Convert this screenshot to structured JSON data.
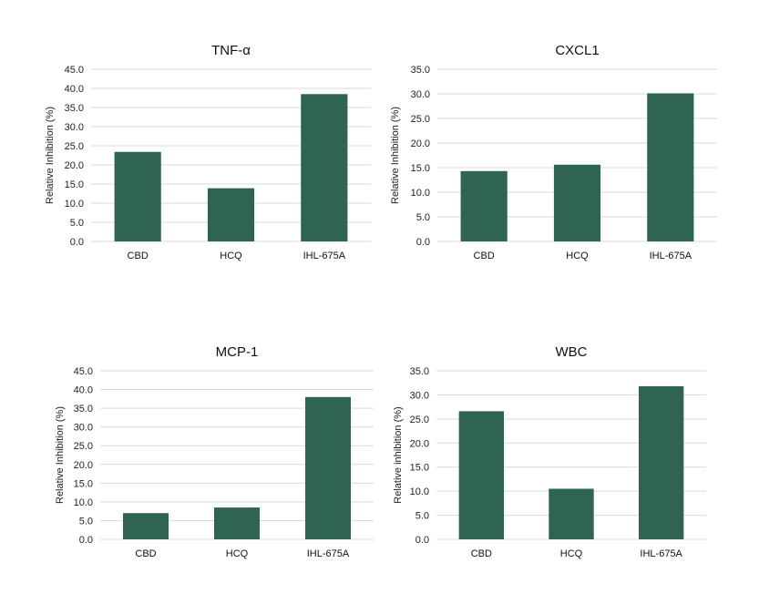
{
  "colors": {
    "bar": "#2e6450",
    "grid": "#d9d9d9"
  },
  "chart_data": [
    {
      "type": "bar",
      "title": "TNF-α",
      "ylabel": "Relative Inhibition (%)",
      "categories": [
        "CBD",
        "HCQ",
        "IHL-675A"
      ],
      "values": [
        23.4,
        13.9,
        38.5
      ],
      "ylim": [
        0,
        45
      ],
      "yticks": [
        "0.0",
        "5.0",
        "10.0",
        "15.0",
        "20.0",
        "25.0",
        "30.0",
        "35.0",
        "40.0",
        "45.0"
      ],
      "grid": true
    },
    {
      "type": "bar",
      "title": "CXCL1",
      "ylabel": "Relative Inhibition (%)",
      "categories": [
        "CBD",
        "HCQ",
        "IHL-675A"
      ],
      "values": [
        14.3,
        15.6,
        30.1
      ],
      "ylim": [
        0,
        35
      ],
      "yticks": [
        "0.0",
        "5.0",
        "10.0",
        "15.0",
        "20.0",
        "25.0",
        "30.0",
        "35.0"
      ],
      "grid": true
    },
    {
      "type": "bar",
      "title": "MCP-1",
      "ylabel": "Relative Inhibition (%)",
      "categories": [
        "CBD",
        "HCQ",
        "IHL-675A"
      ],
      "values": [
        7.0,
        8.5,
        38.0
      ],
      "ylim": [
        0,
        45
      ],
      "yticks": [
        "0.0",
        "5.0",
        "10.0",
        "15.0",
        "20.0",
        "25.0",
        "30.0",
        "35.0",
        "40.0",
        "45.0"
      ],
      "grid": true
    },
    {
      "type": "bar",
      "title": "WBC",
      "ylabel": "Relative inhibition (%)",
      "categories": [
        "CBD",
        "HCQ",
        "IHL-675A"
      ],
      "values": [
        26.6,
        10.5,
        31.8
      ],
      "ylim": [
        0,
        35
      ],
      "yticks": [
        "0.0",
        "5.0",
        "10.0",
        "15.0",
        "20.0",
        "25.0",
        "30.0",
        "35.0"
      ],
      "grid": true
    }
  ]
}
